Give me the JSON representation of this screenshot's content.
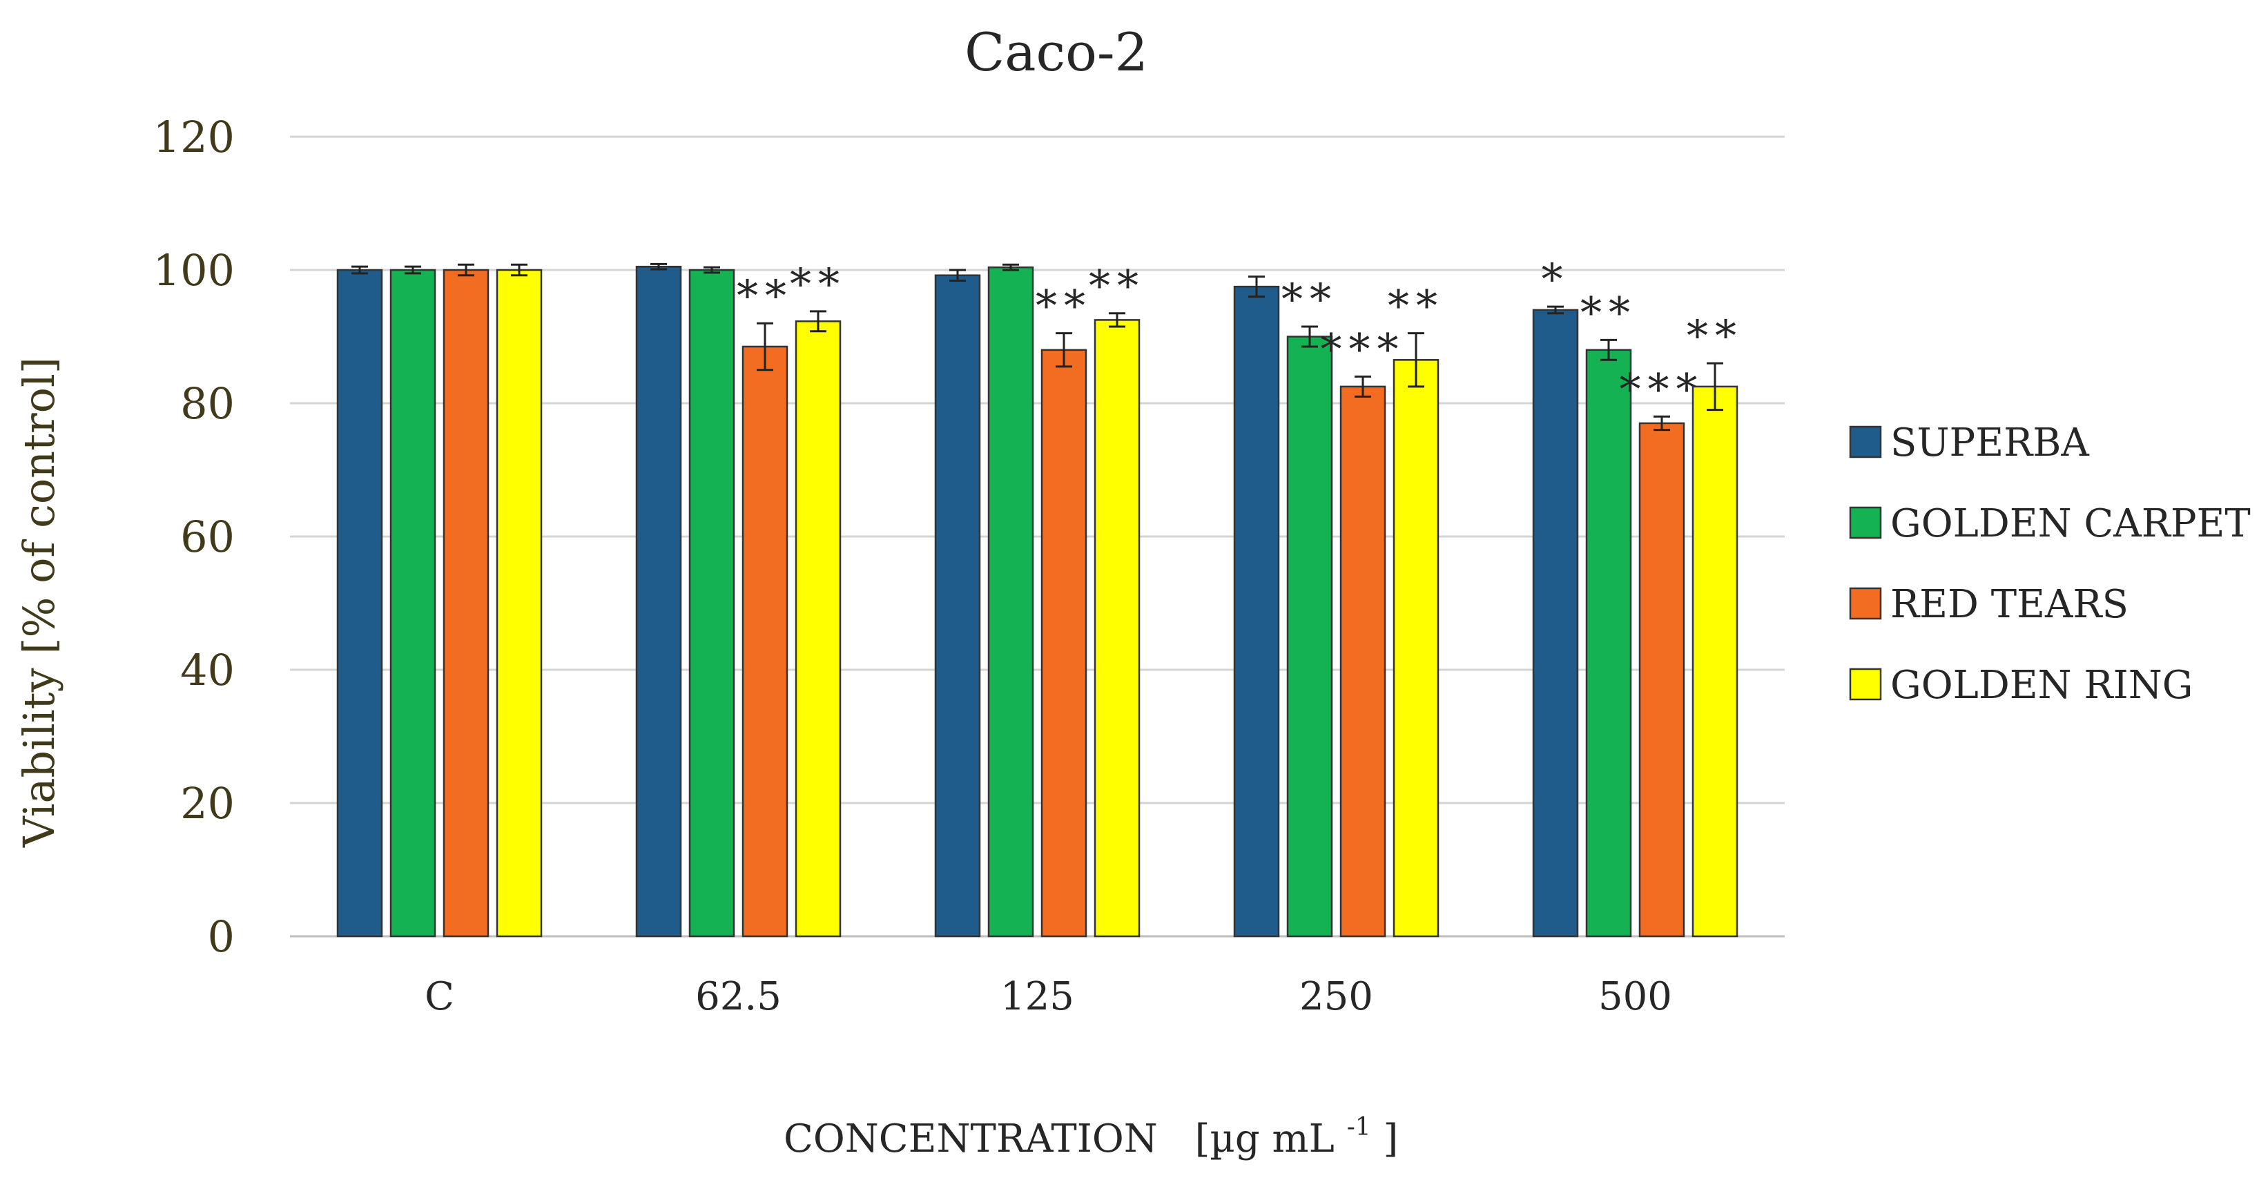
{
  "chart_data": {
    "type": "bar",
    "title": "Caco-2",
    "xlabel_main": "CONCENTRATION",
    "xlabel_unit_prefix": "[µg mL",
    "xlabel_unit_sup": "-1",
    "xlabel_unit_suffix": "]",
    "ylabel": "Viability [% of control]",
    "ylim": [
      0,
      120
    ],
    "yticks": [
      0,
      20,
      40,
      60,
      80,
      100,
      120
    ],
    "grid": true,
    "legend_position": "right",
    "categories": [
      "C",
      "62.5",
      "125",
      "250",
      "500"
    ],
    "series": [
      {
        "name": "SUPERBA",
        "color": "#1f5c8b",
        "values": [
          100,
          100.5,
          99.2,
          97.5,
          94
        ],
        "errors": [
          0.5,
          0.4,
          0.8,
          1.5,
          0.5
        ],
        "stars": [
          "",
          "",
          "",
          "",
          "*"
        ]
      },
      {
        "name": "GOLDEN CARPET",
        "color": "#14b253",
        "values": [
          100,
          100,
          100.4,
          90,
          88
        ],
        "errors": [
          0.5,
          0.4,
          0.4,
          1.5,
          1.5
        ],
        "stars": [
          "",
          "",
          "",
          "**",
          "**"
        ]
      },
      {
        "name": "RED TEARS",
        "color": "#f26d21",
        "values": [
          100,
          88.5,
          88,
          82.5,
          77
        ],
        "errors": [
          0.8,
          3.5,
          2.5,
          1.5,
          1.0
        ],
        "stars": [
          "",
          "**",
          "**",
          "***",
          "***"
        ]
      },
      {
        "name": "GOLDEN RING",
        "color": "#ffff00",
        "values": [
          100,
          92.3,
          92.5,
          86.5,
          82.5
        ],
        "errors": [
          0.8,
          1.5,
          1.0,
          4.0,
          3.5
        ],
        "stars": [
          "",
          "**",
          "**",
          "**",
          "**"
        ]
      }
    ]
  }
}
